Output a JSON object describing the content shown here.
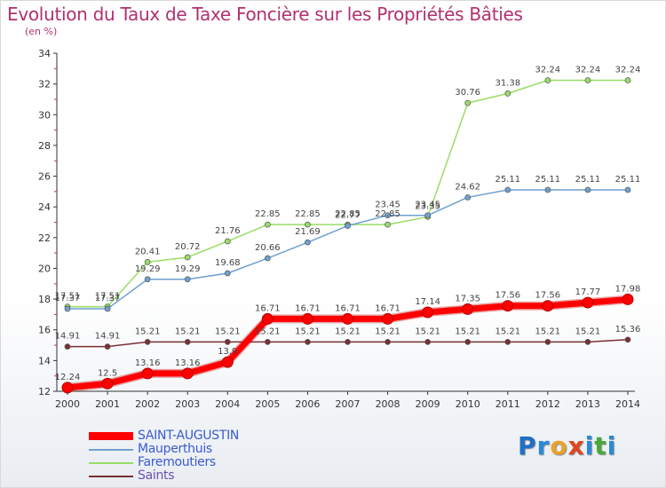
{
  "title": "Evolution du Taux de Taxe Foncière sur les Propriétés Bâties",
  "unit": "(en %)",
  "brand": {
    "text": "Proxiti",
    "letters": [
      {
        "ch": "P",
        "color": "#1f6fc5"
      },
      {
        "ch": "r",
        "color": "#2a8ad8"
      },
      {
        "ch": "o",
        "color": "#e8a32c"
      },
      {
        "ch": "x",
        "color": "#e0451f"
      },
      {
        "ch": "i",
        "color": "#2a8ad8"
      },
      {
        "ch": "t",
        "color": "#4aa83a"
      },
      {
        "ch": "i",
        "color": "#2a8ad8"
      }
    ]
  },
  "chart_data": {
    "type": "line",
    "x": [
      "2000",
      "2001",
      "2002",
      "2003",
      "2004",
      "2005",
      "2006",
      "2007",
      "2008",
      "2009",
      "2010",
      "2011",
      "2012",
      "2013",
      "2014"
    ],
    "ylim": [
      12,
      34
    ],
    "yticks": [
      12,
      14,
      16,
      18,
      20,
      22,
      24,
      26,
      28,
      30,
      32,
      34
    ],
    "grid": false,
    "legend_position": "bottom-left",
    "series": [
      {
        "name": "SAINT-AUGUSTIN",
        "color": "#ff0000",
        "labels": [
          "12.24",
          "12.5",
          "13.16",
          "13.16",
          "13.9",
          "16.71",
          "16.71",
          "16.71",
          "16.71",
          "17.14",
          "17.35",
          "17.56",
          "17.56",
          "17.77",
          "17.98"
        ],
        "values": [
          12.24,
          12.5,
          13.16,
          13.16,
          13.9,
          16.71,
          16.71,
          16.71,
          16.71,
          17.14,
          17.35,
          17.56,
          17.56,
          17.77,
          17.98
        ]
      },
      {
        "name": "Mauperthuis",
        "color": "#6fa0d0",
        "labels": [
          "17.37",
          "17.37",
          "19.29",
          "19.29",
          "19.68",
          "20.66",
          "21.69",
          "22.77",
          "23.45",
          "23.45",
          "24.62",
          "25.11",
          "25.11",
          "25.11",
          "25.11"
        ],
        "values": [
          17.37,
          17.37,
          19.29,
          19.29,
          19.68,
          20.66,
          21.69,
          22.77,
          23.45,
          23.45,
          24.62,
          25.11,
          25.11,
          25.11,
          25.11
        ]
      },
      {
        "name": "Faremoutiers",
        "color": "#99dd66",
        "labels": [
          "17.51",
          "17.51",
          "20.41",
          "20.72",
          "21.76",
          "22.85",
          "22.85",
          "22.85",
          "22.85",
          "23.35",
          "30.76",
          "31.38",
          "32.24",
          "32.24",
          "32.24"
        ],
        "values": [
          17.51,
          17.51,
          20.41,
          20.72,
          21.76,
          22.85,
          22.85,
          22.85,
          22.85,
          23.35,
          30.76,
          31.38,
          32.24,
          32.24,
          32.24
        ]
      },
      {
        "name": "Saints",
        "color": "#7a2f35",
        "labels": [
          "14.91",
          "14.91",
          "15.21",
          "15.21",
          "15.21",
          "15.21",
          "15.21",
          "15.21",
          "15.21",
          "15.21",
          "15.21",
          "15.21",
          "15.21",
          "15.21",
          "15.36"
        ],
        "values": [
          14.91,
          14.91,
          15.21,
          15.21,
          15.21,
          15.21,
          15.21,
          15.21,
          15.21,
          15.21,
          15.21,
          15.21,
          15.21,
          15.21,
          15.36
        ]
      }
    ]
  }
}
